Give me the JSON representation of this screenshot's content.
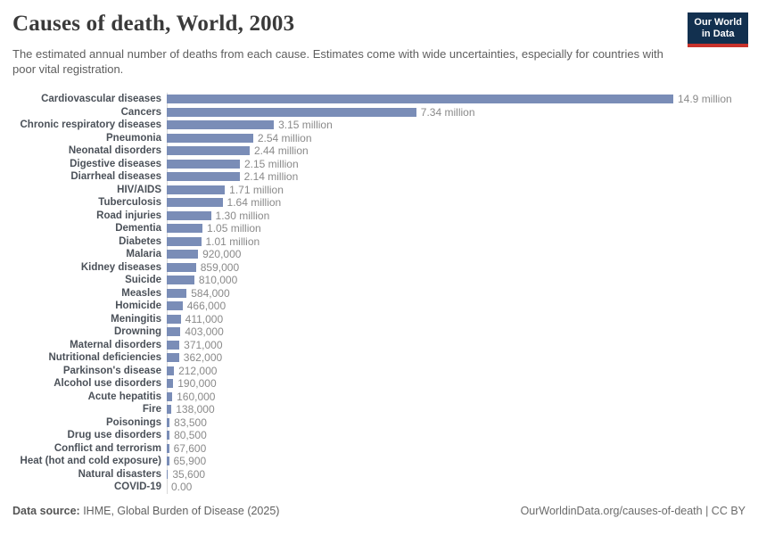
{
  "header": {
    "title": "Causes of death, World, 2003",
    "subtitle": "The estimated annual number of deaths from each cause. Estimates come with wide uncertainties, especially for countries with poor vital registration.",
    "logo": {
      "line1": "Our World",
      "line2": "in Data"
    }
  },
  "chart_data": {
    "type": "bar",
    "orientation": "horizontal",
    "title": "Causes of death, World, 2003",
    "xlabel": "",
    "ylabel": "",
    "unit": "deaths per year",
    "xlim": [
      0,
      14900000
    ],
    "grid": false,
    "legend": false,
    "bar_color": "#7a8db7",
    "category_label_color": "#4b5159",
    "value_label_color": "#8a8a8a",
    "categories": [
      "Cardiovascular diseases",
      "Cancers",
      "Chronic respiratory diseases",
      "Pneumonia",
      "Neonatal disorders",
      "Digestive diseases",
      "Diarrheal diseases",
      "HIV/AIDS",
      "Tuberculosis",
      "Road injuries",
      "Dementia",
      "Diabetes",
      "Malaria",
      "Kidney diseases",
      "Suicide",
      "Measles",
      "Homicide",
      "Meningitis",
      "Drowning",
      "Maternal disorders",
      "Nutritional deficiencies",
      "Parkinson's disease",
      "Alcohol use disorders",
      "Acute hepatitis",
      "Fire",
      "Poisonings",
      "Drug use disorders",
      "Conflict and terrorism",
      "Heat (hot and cold exposure)",
      "Natural disasters",
      "COVID-19"
    ],
    "values": [
      14900000,
      7340000,
      3150000,
      2540000,
      2440000,
      2150000,
      2140000,
      1710000,
      1640000,
      1300000,
      1050000,
      1010000,
      920000,
      859000,
      810000,
      584000,
      466000,
      411000,
      403000,
      371000,
      362000,
      212000,
      190000,
      160000,
      138000,
      83500,
      80500,
      67600,
      65900,
      35600,
      0
    ],
    "value_labels": [
      "14.9 million",
      "7.34 million",
      "3.15 million",
      "2.54 million",
      "2.44 million",
      "2.15 million",
      "2.14 million",
      "1.71 million",
      "1.64 million",
      "1.30 million",
      "1.05 million",
      "1.01 million",
      "920,000",
      "859,000",
      "810,000",
      "584,000",
      "466,000",
      "411,000",
      "403,000",
      "371,000",
      "362,000",
      "212,000",
      "190,000",
      "160,000",
      "138,000",
      "83,500",
      "80,500",
      "67,600",
      "65,900",
      "35,600",
      "0.00"
    ]
  },
  "footer": {
    "datasource_prefix": "Data source:",
    "datasource": " IHME, Global Burden of Disease (2025)",
    "license": "OurWorldinData.org/causes-of-death | CC BY"
  }
}
